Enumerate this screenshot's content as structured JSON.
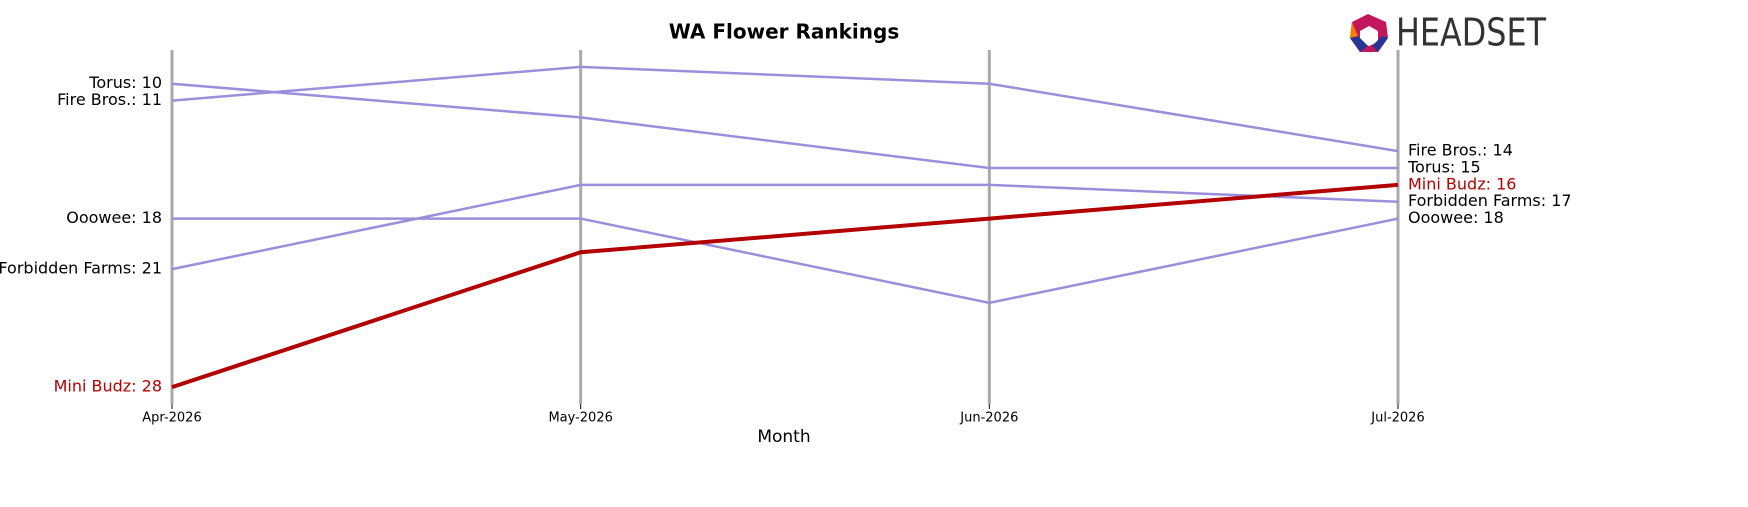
{
  "chart_data": {
    "type": "line",
    "title": "WA Flower Rankings",
    "x_label": "Month",
    "categories": [
      "Apr-2026",
      "May-2026",
      "Jun-2026",
      "Jul-2026"
    ],
    "ylim": [
      29,
      8
    ],
    "inverted_y": true,
    "logo": "HEADSET",
    "series": [
      {
        "name": "Torus",
        "color": "#9b8fdc",
        "values": [
          10,
          12,
          15,
          15
        ],
        "value_labels": [
          "Torus: 10",
          null,
          null,
          "Torus: 15"
        ]
      },
      {
        "name": "Fire Bros.",
        "color": "#9b8fdc",
        "values": [
          11,
          9,
          10,
          14
        ],
        "value_labels": [
          "Fire Bros.: 11",
          null,
          null,
          "Fire Bros.: 14"
        ]
      },
      {
        "name": "Ooowee",
        "color": "#9b8fdc",
        "values": [
          18,
          18,
          23,
          18
        ],
        "value_labels": [
          "Ooowee: 18",
          null,
          null,
          "Ooowee: 18"
        ]
      },
      {
        "name": "Forbidden Farms",
        "color": "#9b8fdc",
        "values": [
          21,
          16,
          16,
          17
        ],
        "value_labels": [
          "Forbidden Farms: 21",
          null,
          null,
          "Forbidden Farms: 17"
        ]
      },
      {
        "name": "Mini Budz",
        "color": "#b30000",
        "highlight": true,
        "values": [
          28,
          20,
          18,
          16
        ],
        "value_labels": [
          "Mini Budz: 28",
          null,
          null,
          "Mini Budz: 16"
        ]
      }
    ]
  }
}
